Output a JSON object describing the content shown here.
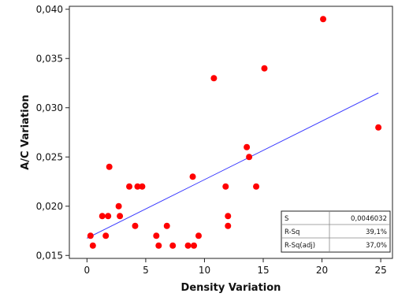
{
  "chart_data": {
    "type": "scatter",
    "title": "",
    "xlabel": "Density Variation",
    "ylabel": "A/C Variation",
    "xlim": [
      -1.5,
      26
    ],
    "ylim": [
      0.0147,
      0.0403
    ],
    "xticks": [
      0,
      5,
      10,
      15,
      20,
      25
    ],
    "xtick_labels": [
      "0",
      "5",
      "10",
      "15",
      "20",
      "25"
    ],
    "yticks": [
      0.015,
      0.02,
      0.025,
      0.03,
      0.035,
      0.04
    ],
    "ytick_labels": [
      "0,015",
      "0,020",
      "0,025",
      "0,030",
      "0,035",
      "0,040"
    ],
    "grid": false,
    "series": [
      {
        "marker_color": "#ff0000",
        "points": [
          {
            "x": 0.3,
            "y": 0.017
          },
          {
            "x": 0.5,
            "y": 0.016
          },
          {
            "x": 1.3,
            "y": 0.019
          },
          {
            "x": 1.6,
            "y": 0.017
          },
          {
            "x": 1.8,
            "y": 0.019
          },
          {
            "x": 1.9,
            "y": 0.024
          },
          {
            "x": 2.7,
            "y": 0.02
          },
          {
            "x": 2.8,
            "y": 0.019
          },
          {
            "x": 3.6,
            "y": 0.022
          },
          {
            "x": 4.1,
            "y": 0.018
          },
          {
            "x": 4.3,
            "y": 0.022
          },
          {
            "x": 4.7,
            "y": 0.022
          },
          {
            "x": 5.9,
            "y": 0.017
          },
          {
            "x": 6.1,
            "y": 0.016
          },
          {
            "x": 6.8,
            "y": 0.018
          },
          {
            "x": 7.3,
            "y": 0.016
          },
          {
            "x": 8.6,
            "y": 0.016
          },
          {
            "x": 9.0,
            "y": 0.023
          },
          {
            "x": 9.1,
            "y": 0.016
          },
          {
            "x": 9.5,
            "y": 0.017
          },
          {
            "x": 10.8,
            "y": 0.033
          },
          {
            "x": 11.8,
            "y": 0.022
          },
          {
            "x": 12.0,
            "y": 0.019
          },
          {
            "x": 12.0,
            "y": 0.018
          },
          {
            "x": 13.6,
            "y": 0.026
          },
          {
            "x": 13.8,
            "y": 0.025
          },
          {
            "x": 14.4,
            "y": 0.022
          },
          {
            "x": 15.1,
            "y": 0.034
          },
          {
            "x": 20.1,
            "y": 0.039
          },
          {
            "x": 24.8,
            "y": 0.028
          }
        ]
      }
    ],
    "fit_line": {
      "color": "#3a3aff",
      "x": [
        0,
        24.8
      ],
      "y": [
        0.01675,
        0.0315
      ]
    },
    "stats": [
      {
        "label": "S",
        "value": "0,0046032"
      },
      {
        "label": "R-Sq",
        "value": "39,1%"
      },
      {
        "label": "R-Sq(adj)",
        "value": "37,0%"
      }
    ]
  }
}
